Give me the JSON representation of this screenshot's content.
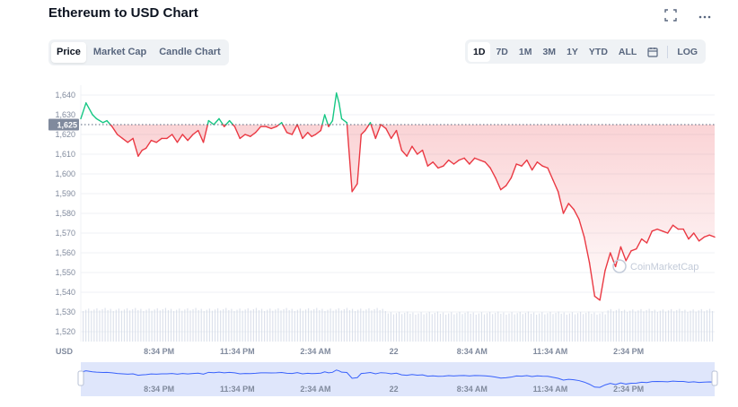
{
  "header": {
    "title": "Ethereum to USD Chart",
    "fullscreen_icon": "fullscreen-icon",
    "more_icon": "more-icon"
  },
  "tabs": [
    {
      "label": "Price",
      "active": true
    },
    {
      "label": "Market Cap",
      "active": false
    },
    {
      "label": "Candle Chart",
      "active": false
    }
  ],
  "ranges": [
    {
      "label": "1D",
      "active": true
    },
    {
      "label": "7D",
      "active": false
    },
    {
      "label": "1M",
      "active": false
    },
    {
      "label": "3M",
      "active": false
    },
    {
      "label": "1Y",
      "active": false
    },
    {
      "label": "YTD",
      "active": false
    },
    {
      "label": "ALL",
      "active": false
    }
  ],
  "calendar_icon": "calendar-icon",
  "log_label": "LOG",
  "watermark": "CoinMarketCap",
  "colors": {
    "up": "#16c784",
    "down": "#ea3943",
    "axis_text": "#808a9d",
    "navigator_fill": "#dfe6fb",
    "navigator_line": "#3861fb"
  },
  "chart_data": {
    "type": "line",
    "title": "Ethereum to USD Chart",
    "ylabel": "USD",
    "ylim": [
      1515,
      1645
    ],
    "yticks": [
      1520,
      1530,
      1540,
      1550,
      1560,
      1570,
      1580,
      1590,
      1600,
      1610,
      1620,
      1630,
      1640
    ],
    "reference_value": 1625,
    "reference_label": "1,625",
    "x_ticks": [
      "8:34 PM",
      "11:34 PM",
      "2:34 AM",
      "22",
      "8:34 AM",
      "11:34 AM",
      "2:34 PM"
    ],
    "x_tick_positions": [
      3,
      6,
      9,
      12,
      15,
      18,
      21
    ],
    "x_range": [
      0,
      24.3
    ],
    "navigator_ticks": [
      "8:34 PM",
      "11:34 PM",
      "2:34 AM",
      "22",
      "8:34 AM",
      "11:34 AM",
      "2:34 PM"
    ],
    "series": [
      {
        "x": [
          0,
          0.2,
          0.45,
          0.6,
          0.85,
          1.0,
          1.2,
          1.4,
          1.6,
          1.8,
          2.0,
          2.2,
          2.35,
          2.5,
          2.7,
          2.9,
          3.1,
          3.3,
          3.5,
          3.7,
          3.9,
          4.1,
          4.3,
          4.5,
          4.7,
          4.9,
          5.1,
          5.3,
          5.5,
          5.7,
          5.9,
          6.1,
          6.3,
          6.5,
          6.7,
          6.9,
          7.1,
          7.3,
          7.5,
          7.7,
          7.9,
          8.1,
          8.3,
          8.5,
          8.7,
          8.85,
          9.0,
          9.2,
          9.35,
          9.5,
          9.65,
          9.8,
          9.9,
          10.0,
          10.2,
          10.4,
          10.6,
          10.75,
          10.9,
          11.1,
          11.3,
          11.5,
          11.7,
          11.9,
          12.1,
          12.3,
          12.5,
          12.7,
          12.9,
          13.1,
          13.3,
          13.5,
          13.7,
          13.9,
          14.1,
          14.3,
          14.5,
          14.7,
          14.9,
          15.1,
          15.3,
          15.5,
          15.7,
          15.9,
          16.1,
          16.3,
          16.5,
          16.7,
          16.9,
          17.1,
          17.3,
          17.5,
          17.7,
          17.9,
          18.1,
          18.3,
          18.5,
          18.7,
          18.9,
          19.1,
          19.3,
          19.5,
          19.7,
          19.9,
          20.1,
          20.3,
          20.5,
          20.7,
          20.9,
          21.1,
          21.3,
          21.5,
          21.7,
          21.9,
          22.1,
          22.3,
          22.5,
          22.7,
          22.9,
          23.1,
          23.3,
          23.5,
          23.7,
          23.9,
          24.1,
          24.3
        ],
        "y": [
          1628,
          1636,
          1630,
          1628,
          1626,
          1627,
          1624,
          1620,
          1618,
          1616,
          1618,
          1609,
          1612,
          1613,
          1617,
          1616,
          1618,
          1618,
          1620,
          1616,
          1620,
          1617,
          1620,
          1622,
          1616,
          1627,
          1625,
          1628,
          1624,
          1627,
          1624,
          1618,
          1620,
          1619,
          1621,
          1624,
          1624,
          1623,
          1624,
          1626,
          1621,
          1620,
          1625,
          1618,
          1621,
          1619,
          1620,
          1622,
          1630,
          1624,
          1627,
          1641,
          1636,
          1628,
          1626,
          1591,
          1595,
          1620,
          1622,
          1626,
          1618,
          1625,
          1623,
          1618,
          1622,
          1612,
          1609,
          1614,
          1610,
          1612,
          1604,
          1606,
          1603,
          1604,
          1607,
          1605,
          1607,
          1608,
          1605,
          1608,
          1607,
          1606,
          1603,
          1598,
          1592,
          1594,
          1598,
          1605,
          1604,
          1607,
          1602,
          1606,
          1604,
          1603,
          1597,
          1591,
          1580,
          1585,
          1582,
          1577,
          1568,
          1555,
          1538,
          1536,
          1551,
          1560,
          1553,
          1563,
          1556,
          1561,
          1562,
          1567,
          1565,
          1571,
          1572,
          1571,
          1570,
          1574,
          1572,
          1572,
          1567,
          1570,
          1566,
          1568,
          1569,
          1568
        ]
      }
    ],
    "volume_note": "volume bars along bottom band",
    "grid": true
  }
}
